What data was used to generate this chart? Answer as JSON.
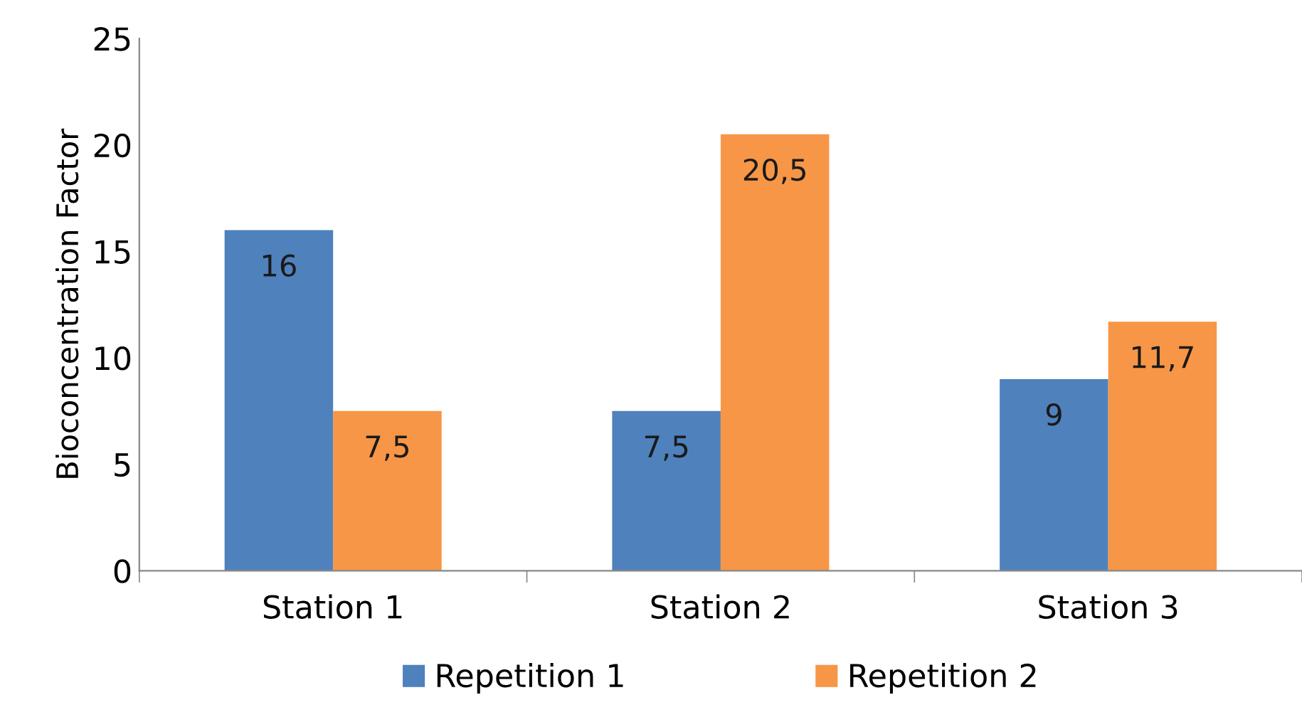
{
  "chart_data": {
    "type": "bar",
    "ylabel": "Bioconcentration Factor",
    "categories": [
      "Station 1",
      "Station 2",
      "Station 3"
    ],
    "series": [
      {
        "name": "Repetition 1",
        "color": "#4f81bd",
        "values": [
          16,
          7.5,
          9
        ],
        "value_labels": [
          "16",
          "7,5",
          "9"
        ]
      },
      {
        "name": "Repetition 2",
        "color": "#f79646",
        "values": [
          7.5,
          20.5,
          11.7
        ],
        "value_labels": [
          "7,5",
          "20,5",
          "11,7"
        ]
      }
    ],
    "ylim": [
      0,
      25
    ],
    "yticks": [
      0,
      5,
      10,
      15,
      20,
      25
    ],
    "grid": false,
    "legend": "bottom"
  }
}
